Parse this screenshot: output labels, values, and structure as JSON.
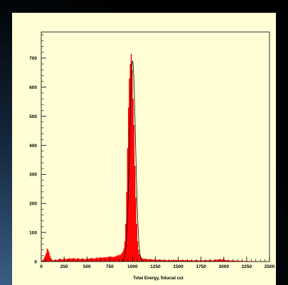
{
  "chart_data": {
    "type": "bar",
    "title": "",
    "xlabel": "Total Energy, fiducial cut",
    "ylabel": "",
    "xlim": [
      0,
      2500
    ],
    "ylim": [
      0,
      790
    ],
    "xticks": [
      0,
      250,
      500,
      750,
      1000,
      1250,
      1500,
      1750,
      2000,
      2250,
      2500
    ],
    "yticks": [
      0,
      100,
      200,
      300,
      400,
      500,
      600,
      700
    ],
    "grid": false,
    "legend": "none",
    "bar_color": "#ff0000",
    "fit_color": "#000000",
    "series": [
      {
        "type": "histogram",
        "bin_width": 10,
        "x": [
          0,
          10,
          20,
          30,
          40,
          50,
          60,
          70,
          80,
          90,
          100,
          110,
          120,
          130,
          140,
          150,
          160,
          170,
          180,
          190,
          200,
          210,
          220,
          230,
          240,
          250,
          260,
          270,
          280,
          290,
          300,
          310,
          320,
          330,
          340,
          350,
          360,
          370,
          380,
          390,
          400,
          410,
          420,
          430,
          440,
          450,
          460,
          470,
          480,
          490,
          500,
          510,
          520,
          530,
          540,
          550,
          560,
          570,
          580,
          590,
          600,
          610,
          620,
          630,
          640,
          650,
          660,
          670,
          680,
          690,
          700,
          710,
          720,
          730,
          740,
          750,
          760,
          770,
          780,
          790,
          800,
          810,
          820,
          830,
          840,
          850,
          860,
          870,
          880,
          890,
          900,
          910,
          920,
          930,
          940,
          950,
          960,
          970,
          980,
          990,
          1000,
          1010,
          1020,
          1030,
          1040,
          1050,
          1060,
          1070,
          1080,
          1090,
          1100,
          1110,
          1120,
          1130,
          1140,
          1150,
          1160,
          1170,
          1180,
          1190,
          1200,
          1210,
          1220,
          1230,
          1240,
          1250,
          1260,
          1270,
          1280,
          1290,
          1300,
          1310,
          1320,
          1330,
          1340,
          1350,
          1360,
          1370,
          1380,
          1390,
          1400,
          1410,
          1420,
          1430,
          1440,
          1450,
          1460,
          1470,
          1480,
          1490,
          1500,
          1510,
          1520,
          1530,
          1540,
          1550,
          1560,
          1570,
          1580,
          1590,
          1600,
          1610,
          1620,
          1630,
          1640,
          1650,
          1660,
          1670,
          1680,
          1690,
          1700,
          1710,
          1720,
          1730,
          1740,
          1750,
          1760,
          1770,
          1780,
          1790,
          1800,
          1810,
          1820,
          1830,
          1840,
          1850,
          1860,
          1870,
          1880,
          1890,
          1900,
          1910,
          1920,
          1930,
          1940,
          1950,
          1960,
          1970,
          1980,
          1990,
          2000,
          2010,
          2020,
          2030,
          2040,
          2050,
          2060,
          2070,
          2080,
          2090,
          2100,
          2110,
          2120,
          2130,
          2140,
          2150,
          2160,
          2170,
          2180,
          2190,
          2200,
          2210,
          2220,
          2230,
          2240,
          2250,
          2260,
          2270,
          2280,
          2290,
          2300,
          2310,
          2320,
          2330,
          2340,
          2350,
          2360,
          2370,
          2380,
          2390,
          2400,
          2410,
          2420,
          2430,
          2440,
          2450,
          2460,
          2470,
          2480,
          2490
        ],
        "values": [
          2,
          5,
          8,
          15,
          22,
          30,
          45,
          40,
          32,
          20,
          12,
          7,
          5,
          4,
          4,
          5,
          6,
          5,
          7,
          8,
          10,
          7,
          9,
          6,
          9,
          11,
          7,
          9,
          10,
          8,
          12,
          10,
          9,
          11,
          10,
          13,
          9,
          11,
          8,
          10,
          12,
          10,
          8,
          9,
          10,
          11,
          9,
          8,
          7,
          9,
          11,
          10,
          9,
          12,
          10,
          13,
          11,
          9,
          12,
          10,
          14,
          11,
          13,
          12,
          14,
          15,
          13,
          12,
          16,
          14,
          15,
          13,
          17,
          16,
          14,
          18,
          16,
          17,
          15,
          16,
          18,
          17,
          20,
          22,
          19,
          24,
          22,
          26,
          30,
          35,
          45,
          70,
          130,
          240,
          390,
          530,
          630,
          680,
          715,
          660,
          560,
          470,
          330,
          220,
          130,
          70,
          40,
          25,
          18,
          14,
          12,
          10,
          9,
          10,
          8,
          9,
          7,
          8,
          9,
          7,
          8,
          7,
          6,
          8,
          7,
          6,
          7,
          5,
          6,
          7,
          5,
          6,
          5,
          6,
          5,
          4,
          6,
          5,
          4,
          5,
          4,
          5,
          6,
          4,
          5,
          4,
          5,
          6,
          5,
          4,
          5,
          4,
          6,
          5,
          4,
          5,
          4,
          5,
          4,
          6,
          5,
          4,
          5,
          4,
          5,
          4,
          3,
          4,
          5,
          4,
          5,
          4,
          3,
          4,
          5,
          4,
          3,
          4,
          5,
          4,
          3,
          4,
          5,
          4,
          6,
          5,
          4,
          3,
          4,
          5,
          6,
          7,
          5,
          8,
          6,
          7,
          8,
          6,
          7,
          9,
          7,
          5,
          4,
          5,
          4,
          3,
          4,
          3,
          4,
          3,
          3,
          4,
          3,
          2,
          3,
          2,
          3,
          2,
          2,
          3,
          2,
          2,
          1,
          2,
          2,
          1,
          2,
          1,
          1,
          2,
          1,
          1,
          1,
          0,
          1,
          1,
          0,
          1,
          0,
          1,
          0,
          1,
          0,
          0,
          1,
          0,
          0,
          0,
          0,
          0
        ]
      },
      {
        "type": "gaussian_fit",
        "mean": 1000,
        "sigma": 32,
        "amplitude": 690
      }
    ]
  }
}
